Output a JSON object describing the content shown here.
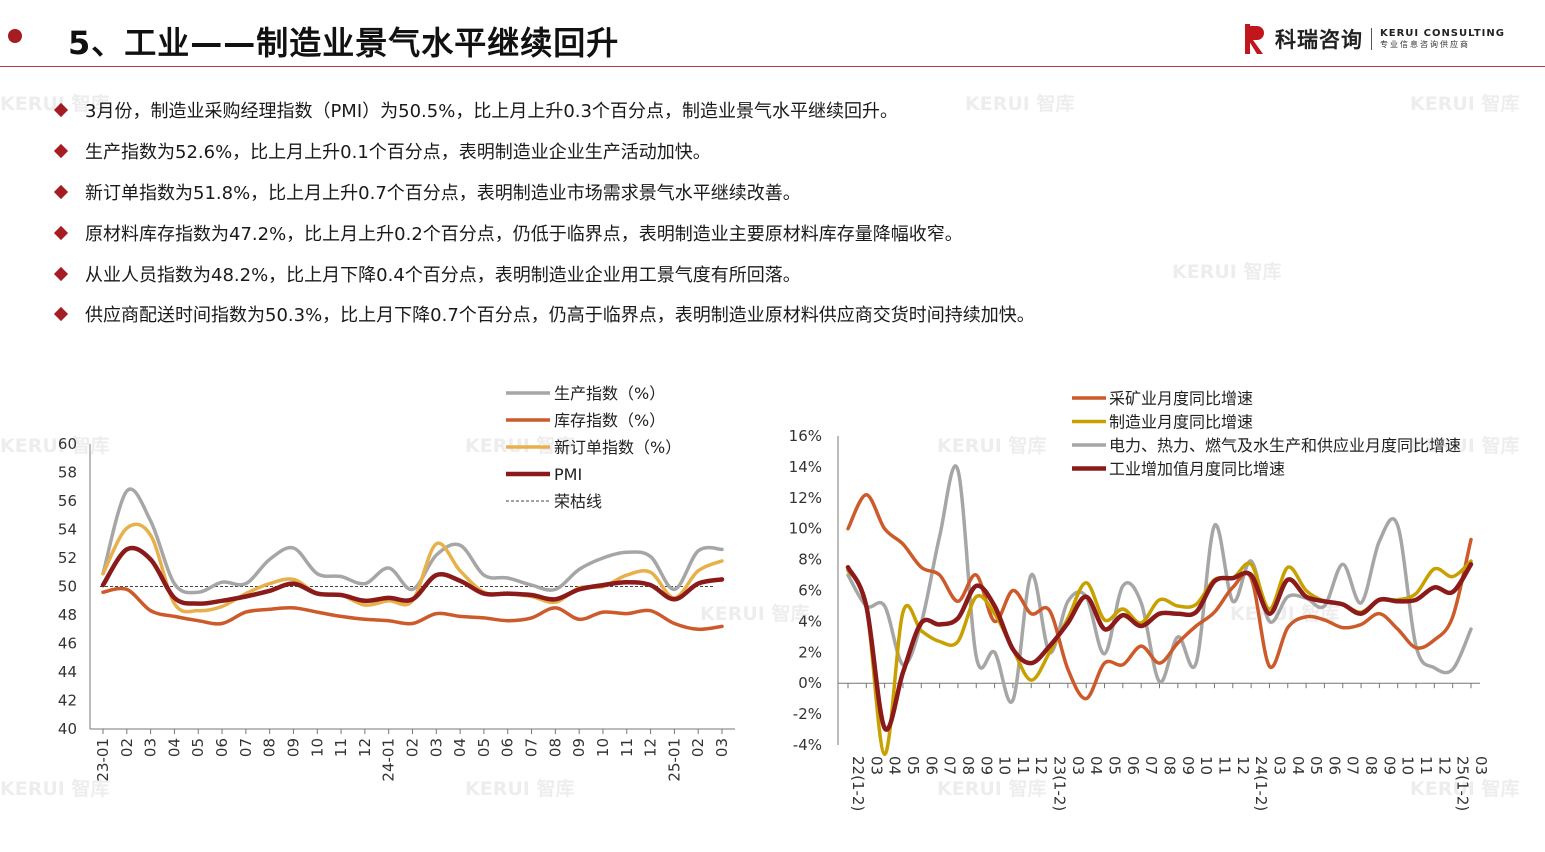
{
  "header": {
    "title": "5、工业——制造业景气水平继续回升",
    "logo_cn": "科瑞咨询",
    "logo_en": "KERUI CONSULTING",
    "logo_tagline": "专业信息咨询供应商",
    "watermark": "KERUI 智库"
  },
  "bullets": [
    "3月份，制造业采购经理指数（PMI）为50.5%，比上月上升0.3个百分点，制造业景气水平继续回升。",
    "生产指数为52.6%，比上月上升0.1个百分点，表明制造业企业生产活动加快。",
    "新订单指数为51.8%，比上月上升0.7个百分点，表明制造业市场需求景气水平继续改善。",
    "原材料库存指数为47.2%，比上月上升0.2个百分点，仍低于临界点，表明制造业主要原材料库存量降幅收窄。",
    "从业人员指数为48.2%，比上月下降0.4个百分点，表明制造业企业用工景气度有所回落。",
    "供应商配送时间指数为50.3%，比上月下降0.7个百分点，仍高于临界点，表明制造业原材料供应商交货时间持续加快。"
  ],
  "colors": {
    "accent": "#a51d22",
    "production": "#a6a6a6",
    "inventory": "#cc5a2a",
    "new_orders": "#e8b04a",
    "pmi": "#8b1a1a",
    "mining": "#cc5a2a",
    "manufacturing": "#c8a000",
    "utilities": "#a6a6a6",
    "industrial": "#8b1a1a"
  },
  "chart_data": [
    {
      "type": "line",
      "x": [
        "23-01",
        "02",
        "03",
        "04",
        "05",
        "06",
        "07",
        "08",
        "09",
        "10",
        "11",
        "12",
        "24-01",
        "02",
        "03",
        "04",
        "05",
        "06",
        "07",
        "08",
        "09",
        "10",
        "11",
        "12",
        "25-01",
        "02",
        "03"
      ],
      "ylim": [
        40,
        60
      ],
      "yticks": [
        "40",
        "42",
        "44",
        "46",
        "48",
        "50",
        "52",
        "54",
        "56",
        "58",
        "60"
      ],
      "series": [
        {
          "name": "生产指数（%）",
          "color": "#a6a6a6",
          "values": [
            50.9,
            56.7,
            54.6,
            50.2,
            49.6,
            50.3,
            50.2,
            51.9,
            52.7,
            50.9,
            50.7,
            50.2,
            51.3,
            49.8,
            52.2,
            52.9,
            50.8,
            50.6,
            50.1,
            49.8,
            51.2,
            52.0,
            52.4,
            52.1,
            49.8,
            52.5,
            52.6
          ]
        },
        {
          "name": "库存指数（%）",
          "color": "#cc5a2a",
          "values": [
            49.6,
            49.8,
            48.3,
            47.9,
            47.6,
            47.4,
            48.2,
            48.4,
            48.5,
            48.2,
            47.9,
            47.7,
            47.6,
            47.4,
            48.1,
            47.9,
            47.8,
            47.6,
            47.8,
            48.5,
            47.7,
            48.2,
            48.1,
            48.3,
            47.4,
            47.0,
            47.2
          ]
        },
        {
          "name": "新订单指数（%）",
          "color": "#e8b04a",
          "values": [
            50.9,
            54.1,
            53.6,
            48.8,
            48.3,
            48.6,
            49.5,
            50.2,
            50.5,
            49.5,
            49.4,
            48.7,
            49.0,
            49.0,
            53.0,
            51.1,
            49.6,
            49.5,
            49.3,
            48.9,
            49.9,
            50.0,
            50.8,
            51.0,
            49.2,
            51.1,
            51.8
          ]
        },
        {
          "name": "PMI",
          "color": "#8b1a1a",
          "values": [
            50.1,
            52.6,
            51.9,
            49.2,
            48.8,
            49.0,
            49.3,
            49.7,
            50.2,
            49.5,
            49.4,
            49.0,
            49.2,
            49.1,
            50.8,
            50.4,
            49.5,
            49.5,
            49.4,
            49.1,
            49.8,
            50.1,
            50.3,
            50.1,
            49.1,
            50.2,
            50.5
          ]
        }
      ],
      "reference_line": {
        "name": "荣枯线",
        "value": 50
      },
      "legend": "top-right"
    },
    {
      "type": "line",
      "x": [
        "22(1-2)",
        "03",
        "04",
        "05",
        "06",
        "07",
        "08",
        "09",
        "10",
        "11",
        "12",
        "23(1-2)",
        "03",
        "04",
        "05",
        "06",
        "07",
        "08",
        "09",
        "10",
        "11",
        "12",
        "24(1-2)",
        "03",
        "04",
        "05",
        "06",
        "07",
        "08",
        "09",
        "10",
        "11",
        "12",
        "25(1-2)",
        "03"
      ],
      "ylim": [
        -4,
        16
      ],
      "yticks": [
        "-4%",
        "-2%",
        "0%",
        "2%",
        "4%",
        "6%",
        "8%",
        "10%",
        "12%",
        "14%",
        "16%"
      ],
      "series": [
        {
          "name": "采矿业月度同比增速",
          "color": "#cc5a2a",
          "values": [
            10.0,
            12.2,
            10.0,
            9.0,
            7.5,
            7.0,
            5.3,
            7.0,
            4.0,
            6.0,
            4.5,
            4.7,
            0.9,
            -1.0,
            1.3,
            1.2,
            2.4,
            1.3,
            2.6,
            3.7,
            4.6,
            6.2,
            6.8,
            1.1,
            3.6,
            4.3,
            4.1,
            3.6,
            3.8,
            4.5,
            3.5,
            2.3,
            2.8,
            4.3,
            9.3
          ]
        },
        {
          "name": "制造业月度同比增速",
          "color": "#c8a000",
          "values": [
            7.3,
            5.0,
            -4.6,
            4.6,
            3.4,
            2.7,
            2.7,
            5.6,
            4.5,
            2.2,
            0.2,
            2.0,
            4.2,
            6.5,
            4.1,
            4.8,
            3.9,
            5.4,
            5.0,
            5.1,
            6.7,
            6.8,
            7.7,
            4.8,
            7.5,
            6.0,
            5.3,
            5.1,
            4.6,
            5.4,
            5.4,
            5.8,
            7.4,
            6.9,
            7.9
          ]
        },
        {
          "name": "电力、热力、燃气及水生产和供应业月度同比增速",
          "color": "#a6a6a6",
          "values": [
            7.0,
            5.0,
            5.0,
            1.2,
            3.9,
            9.5,
            13.8,
            1.7,
            2.0,
            -1.1,
            7.0,
            2.0,
            5.3,
            5.6,
            1.9,
            6.3,
            5.2,
            0.1,
            3.0,
            1.3,
            10.2,
            5.3,
            7.9,
            4.0,
            5.6,
            5.5,
            5.0,
            7.7,
            5.2,
            9.2,
            10.2,
            2.4,
            1.0,
            0.9,
            3.5
          ]
        },
        {
          "name": "工业增加值月度同比增速",
          "color": "#8b1a1a",
          "values": [
            7.5,
            5.0,
            -2.9,
            0.7,
            3.9,
            3.8,
            4.2,
            6.3,
            5.0,
            2.2,
            1.3,
            2.4,
            3.9,
            5.6,
            3.5,
            4.4,
            3.7,
            4.5,
            4.5,
            4.6,
            6.6,
            6.8,
            7.0,
            4.5,
            6.7,
            5.6,
            5.3,
            5.1,
            4.5,
            5.4,
            5.3,
            5.4,
            6.2,
            5.9,
            7.7
          ]
        }
      ],
      "legend": "top-right"
    }
  ]
}
